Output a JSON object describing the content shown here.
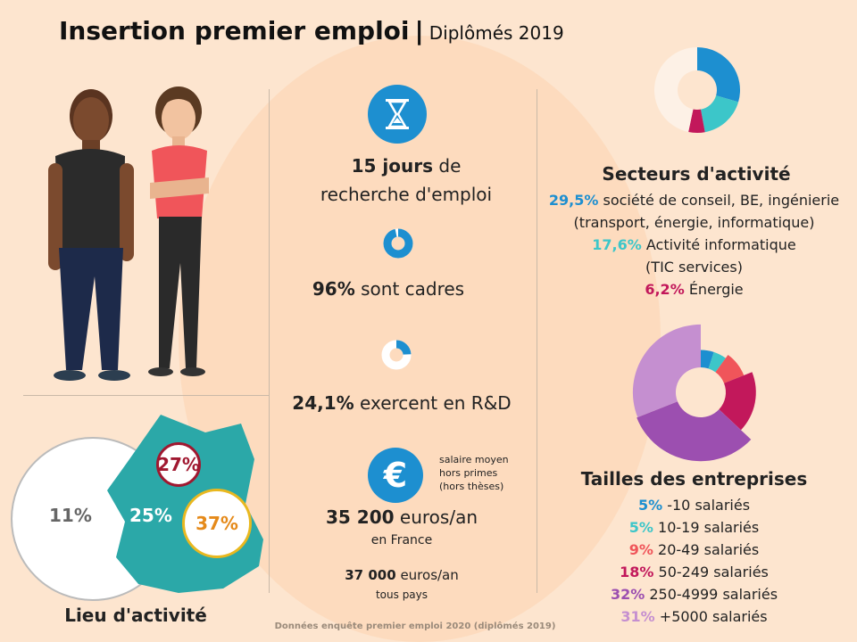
{
  "title": {
    "main": "Insertion premier emploi",
    "separator": "|",
    "sub": "Diplômés 2019"
  },
  "stats": {
    "search": {
      "value": "15 jours",
      "text1": "de",
      "text2": "recherche d'emploi"
    },
    "cadres": {
      "value": "96%",
      "text": "sont cadres",
      "fraction": 0.96
    },
    "rd": {
      "value": "24,1%",
      "text": "exercent en R&D",
      "fraction": 0.241
    },
    "salary": {
      "note1": "salaire moyen",
      "note2": "hors primes",
      "note3": "(hors thèses)",
      "value": "35 200",
      "unit": "euros/an",
      "scope": "en France",
      "value2": "37 000",
      "unit2": "euros/an",
      "scope2": "tous pays",
      "icon": "euro-icon"
    },
    "hourglass_icon": "hourglass-icon"
  },
  "sectors": {
    "title": "Secteurs d'activité",
    "items": [
      {
        "pct": "29,5%",
        "label": "société de conseil, BE, ingénierie",
        "label2": "(transport, énergie, informatique)",
        "color": "#1d8fd0"
      },
      {
        "pct": "17,6%",
        "label": "Activité informatique",
        "label2": "(TIC services)",
        "color": "#3cc6c9"
      },
      {
        "pct": "6,2%",
        "label": "Énergie",
        "label2": "",
        "color": "#c2185b"
      }
    ]
  },
  "sizes": {
    "title": "Tailles des entreprises",
    "items": [
      {
        "pct": "5%",
        "label": "-10 salariés",
        "color": "#1d8fd0"
      },
      {
        "pct": "5%",
        "label": "10-19 salariés",
        "color": "#3cc6c9"
      },
      {
        "pct": "9%",
        "label": "20-49 salariés",
        "color": "#f0555a"
      },
      {
        "pct": "18%",
        "label": "50-249 salariés",
        "color": "#c2185b"
      },
      {
        "pct": "32%",
        "label": "250-4999 salariés",
        "color": "#9c4fb0"
      },
      {
        "pct": "31%",
        "label": "+5000 salariés",
        "color": "#c58fd0"
      }
    ]
  },
  "location": {
    "title": "Lieu d'activité",
    "left_pct": "11%",
    "center_pct": "25%",
    "top_pct": "27%",
    "right_pct": "37%"
  },
  "footer": "Données enquête premier emploi 2020 (diplômés 2019)",
  "chart_data": [
    {
      "type": "pie",
      "title": "Secteurs d'activité",
      "categories": [
        "société de conseil, BE, ingénierie",
        "Activité informatique",
        "Énergie"
      ],
      "values": [
        29.5,
        17.6,
        6.2
      ]
    },
    {
      "type": "pie",
      "title": "Tailles des entreprises",
      "categories": [
        "-10 salariés",
        "10-19 salariés",
        "20-49 salariés",
        "50-249 salariés",
        "250-4999 salariés",
        "+5000 salariés"
      ],
      "values": [
        5,
        5,
        9,
        18,
        32,
        31
      ]
    }
  ]
}
